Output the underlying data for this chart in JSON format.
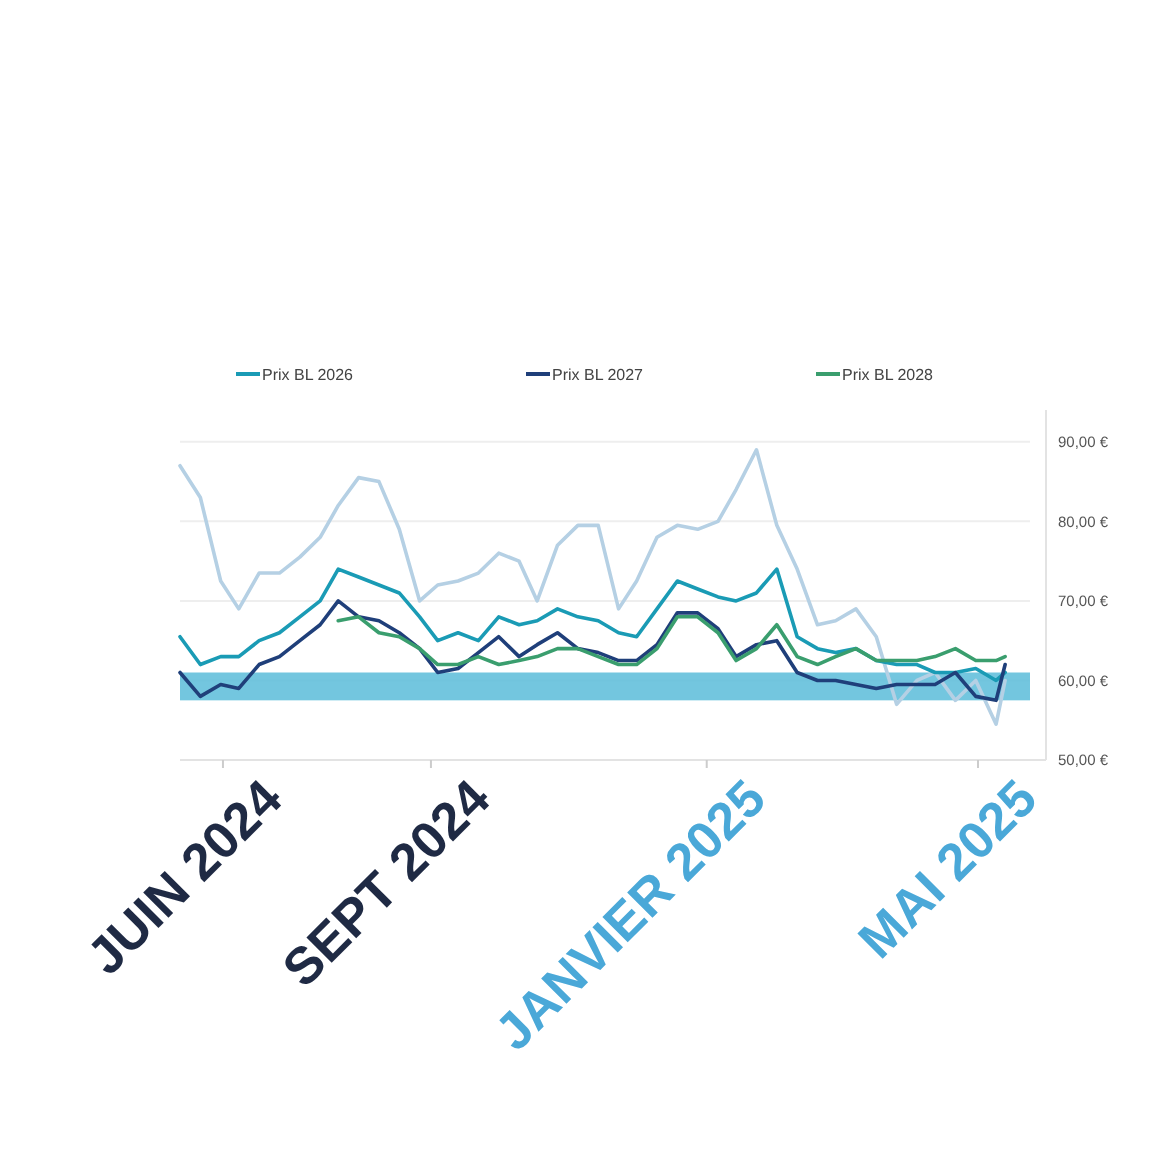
{
  "chart_data": {
    "type": "line",
    "x": [
      "2024-05-13",
      "2024-05-22",
      "2024-05-31",
      "2024-06-08",
      "2024-06-17",
      "2024-06-26",
      "2024-07-05",
      "2024-07-14",
      "2024-07-22",
      "2024-07-31",
      "2024-08-09",
      "2024-08-18",
      "2024-08-27",
      "2024-09-04",
      "2024-09-13",
      "2024-09-22",
      "2024-10-01",
      "2024-10-10",
      "2024-10-18",
      "2024-10-27",
      "2024-11-05",
      "2024-11-14",
      "2024-11-23",
      "2024-12-01",
      "2024-12-10",
      "2024-12-19",
      "2024-12-28",
      "2025-01-06",
      "2025-01-14",
      "2025-01-23",
      "2025-02-01",
      "2025-02-10",
      "2025-02-19",
      "2025-02-27",
      "2025-03-08",
      "2025-03-17",
      "2025-03-26",
      "2025-04-04",
      "2025-04-12",
      "2025-04-21",
      "2025-04-30",
      "2025-05-09",
      "2025-05-13"
    ],
    "series": [
      {
        "color": "#b5d0e4",
        "values": [
          87,
          83,
          72.5,
          69,
          73.5,
          73.5,
          75.5,
          78,
          82,
          85.5,
          85,
          79,
          70,
          72,
          72.5,
          73.5,
          76,
          75,
          70,
          77,
          79.5,
          79.5,
          69,
          72.5,
          78,
          79.5,
          79,
          80,
          84,
          89,
          79.5,
          74,
          67,
          67.5,
          69,
          65.5,
          57,
          60,
          61,
          57.5,
          60,
          54.5,
          60
        ]
      },
      {
        "name": "Prix BL 2026",
        "color": "#1a9bb5",
        "values": [
          65.5,
          62,
          63,
          63,
          65,
          66,
          68,
          70,
          74,
          73,
          72,
          71,
          68,
          65,
          66,
          65,
          68,
          67,
          67.5,
          69,
          68,
          67.5,
          66,
          65.5,
          69,
          72.5,
          71.5,
          70.5,
          70,
          71,
          74,
          65.5,
          64,
          63.5,
          64,
          62.5,
          62,
          62,
          61,
          61,
          61.5,
          60,
          61
        ]
      },
      {
        "name": "Prix BL 2027",
        "color": "#1f3f7a",
        "values": [
          61,
          58,
          59.5,
          59,
          62,
          63,
          65,
          67,
          70,
          68,
          67.5,
          66,
          64,
          61,
          61.5,
          63.5,
          65.5,
          63,
          64.5,
          66,
          64,
          63.5,
          62.5,
          62.5,
          64.5,
          68.5,
          68.5,
          66.5,
          63,
          64.5,
          65,
          61,
          60,
          60,
          59.5,
          59,
          59.5,
          59.5,
          59.5,
          61,
          58,
          57.5,
          62
        ]
      },
      {
        "name": "Prix BL 2028",
        "color": "#3a9e6e",
        "values": [
          null,
          null,
          null,
          null,
          null,
          null,
          null,
          null,
          67.5,
          68,
          66,
          65.5,
          64,
          62,
          62,
          63,
          62,
          62.5,
          63,
          64,
          64,
          63,
          62,
          62,
          64,
          68,
          68,
          66,
          62.5,
          64,
          67,
          63,
          62,
          63,
          64,
          62.5,
          62.5,
          62.5,
          63,
          64,
          62.5,
          62.5,
          63
        ]
      }
    ],
    "xlim": [
      "2024-05-13",
      "2025-05-24"
    ],
    "xticks": [
      {
        "value": "2024-06-01",
        "label": "JUIN 2024"
      },
      {
        "value": "2024-09-01",
        "label": "SEPT 2024"
      },
      {
        "value": "2025-01-01",
        "label": "JANVIER 2025"
      },
      {
        "value": "2025-05-01",
        "label": "MAI 2025"
      }
    ],
    "ylim": [
      50,
      94
    ],
    "yticks": [
      {
        "value": 50,
        "label": "50,00 €"
      },
      {
        "value": 60,
        "label": "60,00 €"
      },
      {
        "value": 70,
        "label": "70,00 €"
      },
      {
        "value": 80,
        "label": "80,00 €"
      },
      {
        "value": 90,
        "label": "90,00 €"
      }
    ],
    "bands": [
      {
        "axis": "y",
        "from": 57.5,
        "to": 61,
        "color": "#5bbcd9"
      }
    ],
    "grid": "y",
    "legend": "top",
    "marker": "none",
    "line_style": "solid"
  }
}
